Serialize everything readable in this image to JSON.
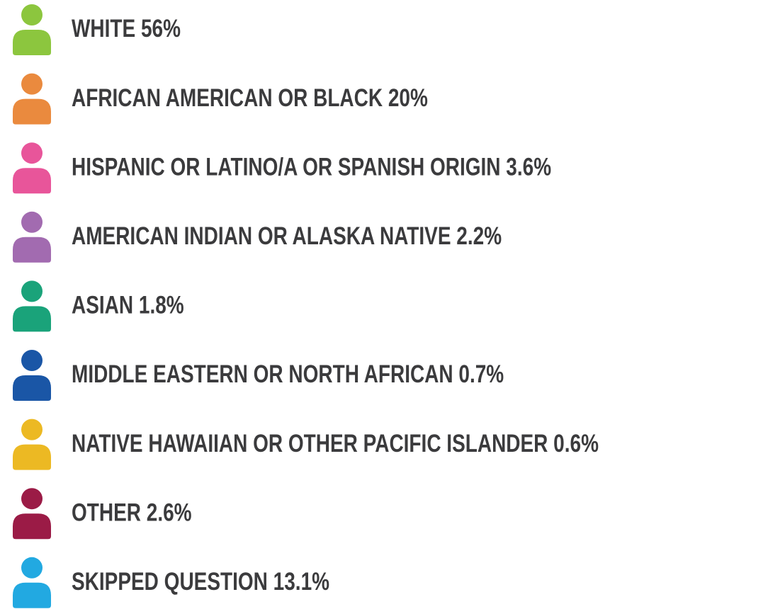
{
  "items": [
    {
      "label": "WHITE 56%",
      "color": "#8cc63e"
    },
    {
      "label": "AFRICAN AMERICAN OR BLACK 20%",
      "color": "#ea8a3e"
    },
    {
      "label": "HISPANIC OR LATINO/A OR SPANISH ORIGIN 3.6%",
      "color": "#e8559a"
    },
    {
      "label": "AMERICAN INDIAN OR ALASKA NATIVE 2.2%",
      "color": "#a26bb0"
    },
    {
      "label": "ASIAN 1.8%",
      "color": "#1aa37a"
    },
    {
      "label": "MIDDLE EASTERN OR NORTH AFRICAN 0.7%",
      "color": "#1a56a6"
    },
    {
      "label": "NATIVE HAWAIIAN OR OTHER PACIFIC ISLANDER 0.6%",
      "color": "#ecb923"
    },
    {
      "label": "OTHER 2.6%",
      "color": "#9b1b46"
    },
    {
      "label": "SKIPPED QUESTION 13.1%",
      "color": "#22a9e1"
    }
  ]
}
